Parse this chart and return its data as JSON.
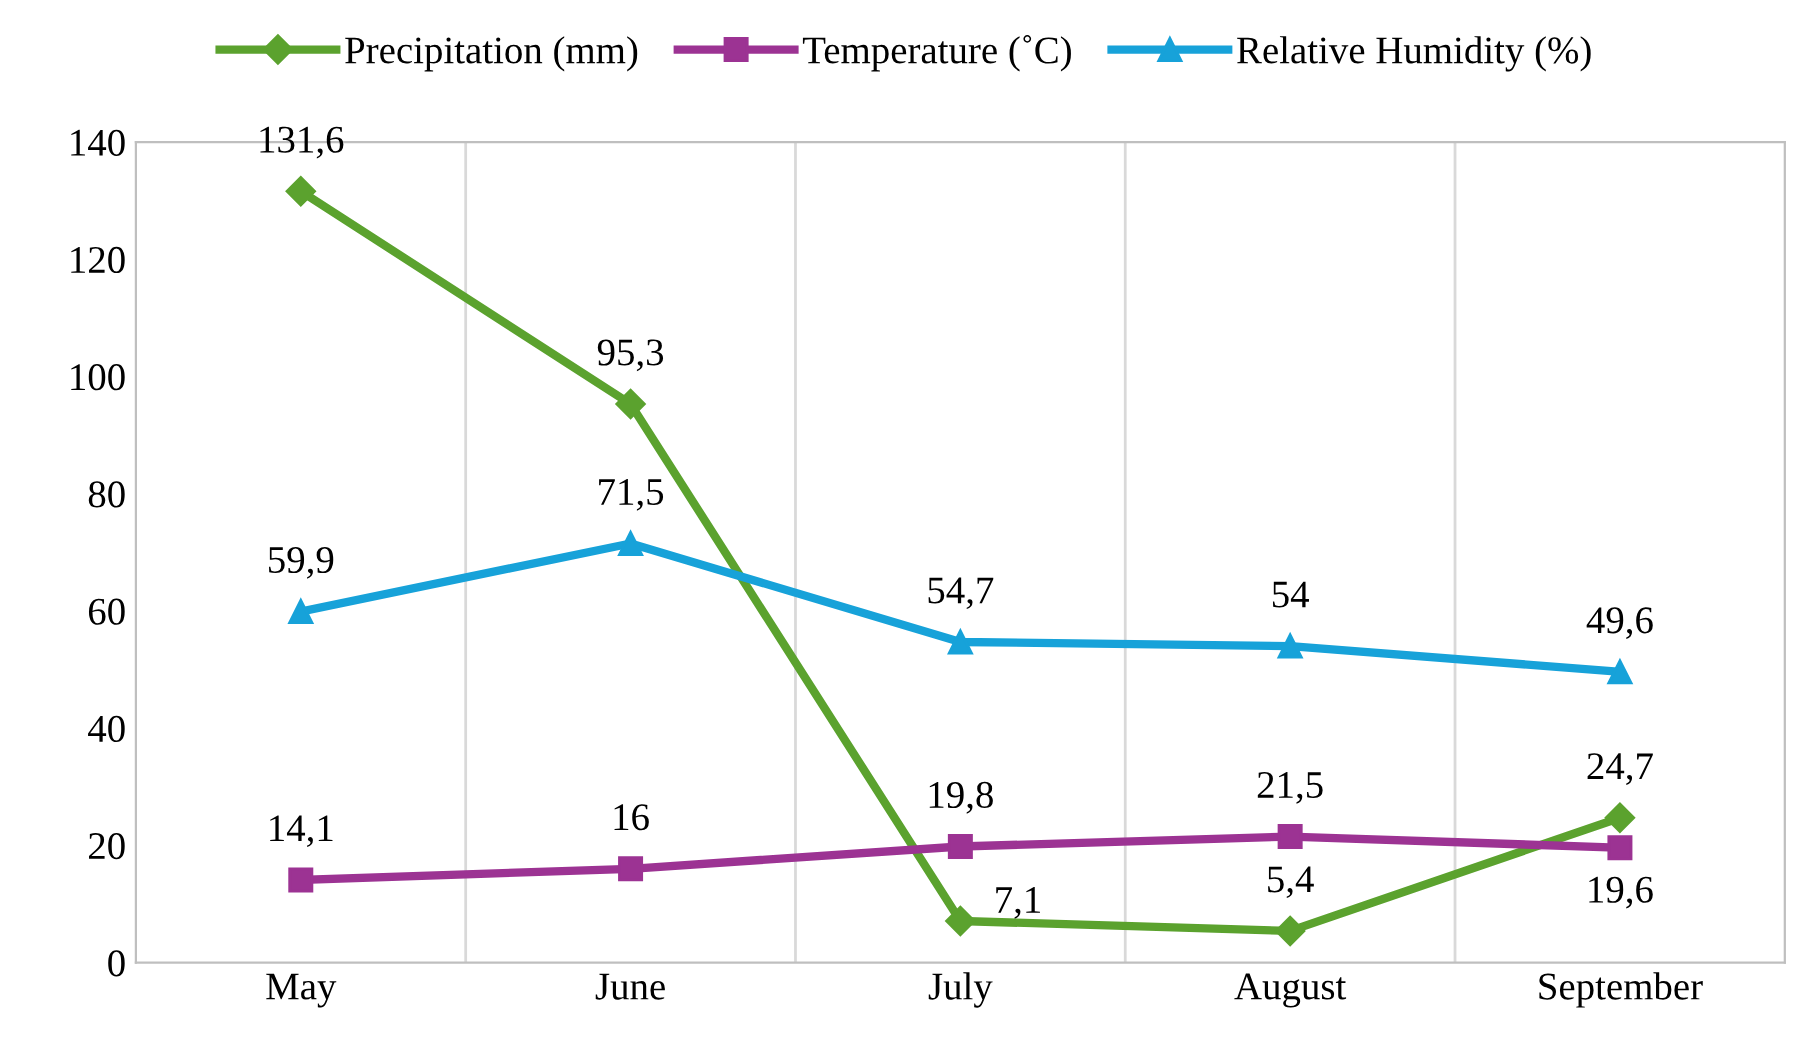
{
  "chart_data": {
    "type": "line",
    "categories": [
      "May",
      "June",
      "July",
      "August",
      "September"
    ],
    "series": [
      {
        "name": "Precipitation (mm)",
        "color": "#5ba22e",
        "marker": "diamond",
        "values": [
          131.6,
          95.3,
          7.1,
          5.4,
          24.7
        ],
        "value_labels": [
          "131,6",
          "95,3",
          "7,1",
          "5,4",
          "24,7"
        ]
      },
      {
        "name": "Temperature (˚C)",
        "color": "#9c3393",
        "marker": "square",
        "values": [
          14.1,
          16,
          19.8,
          21.5,
          19.6
        ],
        "value_labels": [
          "14,1",
          "16",
          "19,8",
          "21,5",
          "19,6"
        ]
      },
      {
        "name": "Relative Humidity (%)",
        "color": "#17a2d9",
        "marker": "triangle",
        "values": [
          59.9,
          71.5,
          54.7,
          54,
          49.6
        ],
        "value_labels": [
          "59,9",
          "71,5",
          "54,7",
          "54",
          "49,6"
        ]
      }
    ],
    "ylim": [
      0,
      140
    ],
    "yticks": [
      0,
      20,
      40,
      60,
      80,
      100,
      120,
      140
    ],
    "grid": "x",
    "legend": "top",
    "line_style": "solid"
  }
}
